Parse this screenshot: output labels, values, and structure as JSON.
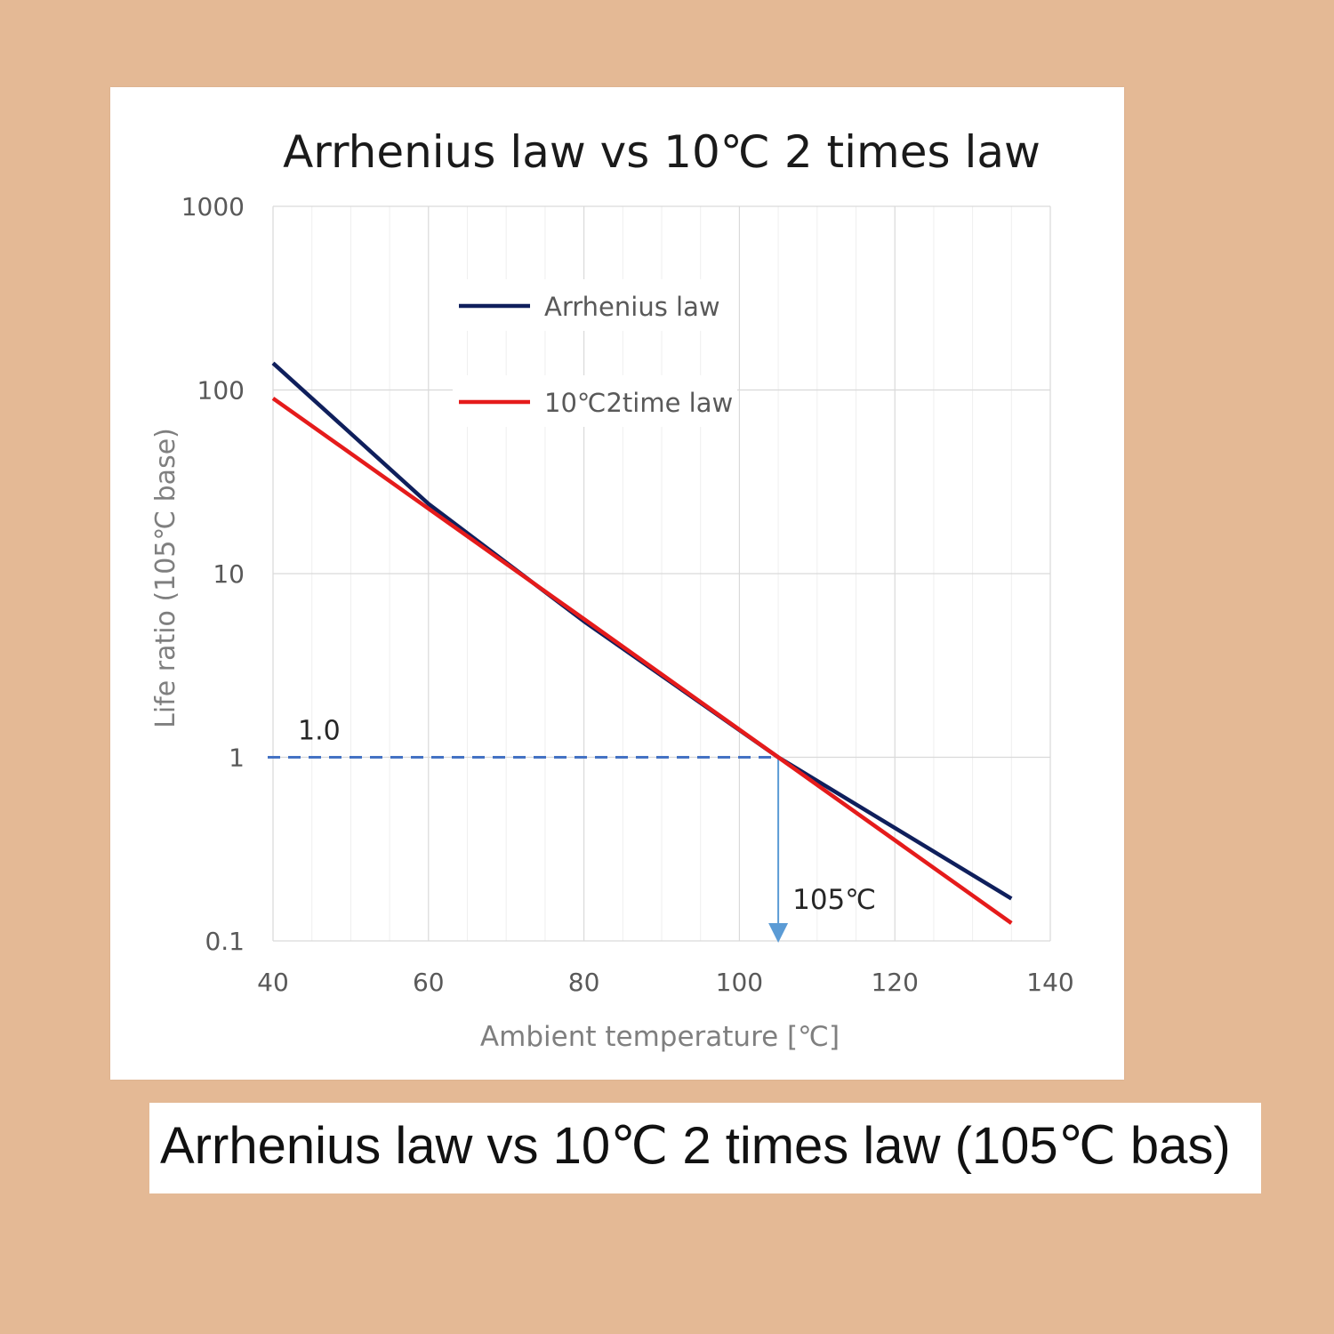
{
  "chart_data": {
    "type": "line",
    "title": "Arrhenius law vs 10℃ 2 times law",
    "xlabel": "Ambient temperature [℃]",
    "ylabel": "Life ratio (105℃ base)",
    "xlim": [
      40,
      140
    ],
    "ylim": [
      0.1,
      1000
    ],
    "y_scale": "log",
    "x_ticks": [
      40,
      60,
      80,
      100,
      120,
      140
    ],
    "x_tick_labels": [
      "40",
      "60",
      "80",
      "100",
      "120",
      "140"
    ],
    "y_ticks": [
      0.1,
      1,
      10,
      100,
      1000
    ],
    "y_tick_labels": [
      "0.1",
      "1",
      "10",
      "100",
      "1000"
    ],
    "grid": true,
    "legend_position": "top-center",
    "series": [
      {
        "name": "Arrhenius law",
        "color": "#0f1f5c",
        "x": [
          40,
          60,
          80,
          105,
          135
        ],
        "y": [
          140,
          24,
          5.5,
          1.0,
          0.17
        ]
      },
      {
        "name": "10℃2time law",
        "color": "#e51b1b",
        "x": [
          40,
          60,
          80,
          105,
          135
        ],
        "y": [
          90,
          22.6,
          5.66,
          1.0,
          0.125
        ]
      }
    ],
    "annotations": {
      "ref_value_label": "1.0",
      "ref_temp_label": "105℃",
      "ref_x": 105,
      "ref_y": 1.0,
      "dash_color": "#4472c4",
      "arrow_color": "#5b9bd5"
    }
  },
  "caption": "Arrhenius law vs 10℃  2 times law (105℃  bas)",
  "colors": {
    "background": "#e4b995",
    "panel": "#ffffff",
    "grid": "#d9d9d9",
    "tick_text": "#595959"
  }
}
